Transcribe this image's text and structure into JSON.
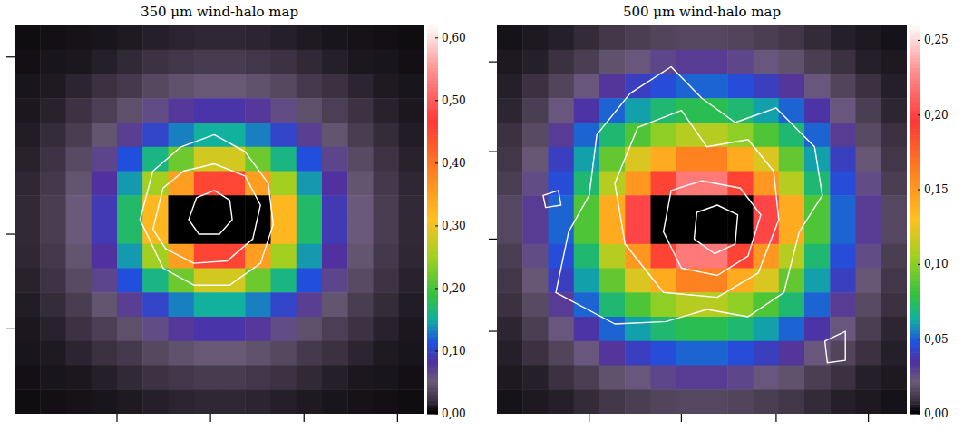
{
  "chart_data": [
    {
      "type": "heatmap",
      "title": "350 μm wind-halo map",
      "tick_labels": false,
      "xlim": [
        0,
        16
      ],
      "ylim": [
        0,
        16
      ],
      "xticks": [
        4,
        7.65,
        11.3,
        14.95
      ],
      "yticks": [
        3.5,
        7.4,
        14.7
      ],
      "colorbar_range": [
        0,
        0.62
      ],
      "colorbar_ticks": [
        {
          "value": 0,
          "label": "0,00"
        },
        {
          "value": 0.1,
          "label": "0,10"
        },
        {
          "value": 0.2,
          "label": "0,20"
        },
        {
          "value": 0.3,
          "label": "0,30"
        },
        {
          "value": 0.4,
          "label": "0,40"
        },
        {
          "value": 0.5,
          "label": "0,50"
        },
        {
          "value": 0.6,
          "label": "0,60"
        }
      ],
      "cells": [
        [
          0.005,
          0.006,
          0.007,
          0.008,
          0.01,
          0.012,
          0.014,
          0.015,
          0.015,
          0.014,
          0.012,
          0.01,
          0.008,
          0.007,
          0.006,
          0.005
        ],
        [
          0.006,
          0.008,
          0.009,
          0.012,
          0.016,
          0.02,
          0.024,
          0.027,
          0.027,
          0.024,
          0.02,
          0.016,
          0.012,
          0.009,
          0.008,
          0.006
        ],
        [
          0.008,
          0.01,
          0.014,
          0.019,
          0.026,
          0.036,
          0.043,
          0.048,
          0.048,
          0.043,
          0.036,
          0.026,
          0.019,
          0.014,
          0.01,
          0.008
        ],
        [
          0.009,
          0.013,
          0.02,
          0.03,
          0.042,
          0.06,
          0.075,
          0.085,
          0.085,
          0.075,
          0.06,
          0.042,
          0.03,
          0.02,
          0.013,
          0.009
        ],
        [
          0.011,
          0.017,
          0.028,
          0.045,
          0.07,
          0.1,
          0.13,
          0.15,
          0.15,
          0.13,
          0.1,
          0.07,
          0.045,
          0.028,
          0.017,
          0.011
        ],
        [
          0.013,
          0.021,
          0.038,
          0.065,
          0.11,
          0.16,
          0.22,
          0.28,
          0.28,
          0.22,
          0.16,
          0.11,
          0.065,
          0.038,
          0.021,
          0.013
        ],
        [
          0.015,
          0.025,
          0.045,
          0.08,
          0.14,
          0.25,
          0.35,
          0.45,
          0.45,
          0.35,
          0.25,
          0.14,
          0.08,
          0.045,
          0.025,
          0.015
        ],
        [
          0.016,
          0.028,
          0.05,
          0.09,
          0.17,
          0.32,
          null,
          null,
          null,
          null,
          0.32,
          0.17,
          0.09,
          0.05,
          0.028,
          0.016
        ],
        [
          0.016,
          0.028,
          0.05,
          0.09,
          0.17,
          0.32,
          null,
          null,
          null,
          null,
          0.32,
          0.17,
          0.09,
          0.05,
          0.028,
          0.016
        ],
        [
          0.015,
          0.025,
          0.045,
          0.08,
          0.14,
          0.25,
          0.35,
          0.45,
          0.45,
          0.35,
          0.25,
          0.14,
          0.08,
          0.045,
          0.025,
          0.015
        ],
        [
          0.013,
          0.021,
          0.038,
          0.065,
          0.11,
          0.16,
          0.22,
          0.28,
          0.28,
          0.22,
          0.16,
          0.11,
          0.065,
          0.038,
          0.021,
          0.013
        ],
        [
          0.011,
          0.017,
          0.028,
          0.045,
          0.07,
          0.1,
          0.13,
          0.15,
          0.15,
          0.13,
          0.1,
          0.07,
          0.045,
          0.028,
          0.017,
          0.011
        ],
        [
          0.009,
          0.013,
          0.02,
          0.03,
          0.042,
          0.06,
          0.075,
          0.085,
          0.085,
          0.075,
          0.06,
          0.042,
          0.03,
          0.02,
          0.013,
          0.009
        ],
        [
          0.008,
          0.01,
          0.014,
          0.019,
          0.026,
          0.036,
          0.043,
          0.048,
          0.048,
          0.043,
          0.036,
          0.026,
          0.019,
          0.014,
          0.01,
          0.008
        ],
        [
          0.006,
          0.008,
          0.009,
          0.012,
          0.016,
          0.02,
          0.024,
          0.027,
          0.027,
          0.024,
          0.02,
          0.016,
          0.012,
          0.009,
          0.008,
          0.006
        ],
        [
          0.005,
          0.006,
          0.007,
          0.008,
          0.01,
          0.012,
          0.014,
          0.015,
          0.015,
          0.014,
          0.012,
          0.01,
          0.008,
          0.007,
          0.006,
          0.005
        ]
      ],
      "contours": [
        [
          [
            6.8,
            8.0
          ],
          [
            7.1,
            8.9
          ],
          [
            7.8,
            9.2
          ],
          [
            8.4,
            8.8
          ],
          [
            8.5,
            8.0
          ],
          [
            8.0,
            7.4
          ],
          [
            7.2,
            7.4
          ]
        ],
        [
          [
            5.4,
            7.6
          ],
          [
            5.8,
            9.3
          ],
          [
            6.6,
            10.0
          ],
          [
            7.8,
            10.3
          ],
          [
            9.0,
            9.8
          ],
          [
            9.6,
            8.6
          ],
          [
            9.3,
            7.2
          ],
          [
            8.3,
            6.3
          ],
          [
            7.0,
            6.2
          ],
          [
            5.9,
            6.8
          ]
        ],
        [
          [
            4.9,
            8.0
          ],
          [
            5.4,
            10.0
          ],
          [
            6.5,
            11.0
          ],
          [
            7.8,
            11.5
          ],
          [
            9.0,
            10.8
          ],
          [
            9.9,
            9.5
          ],
          [
            10.1,
            7.8
          ],
          [
            9.6,
            6.2
          ],
          [
            8.4,
            5.3
          ],
          [
            7.0,
            5.3
          ],
          [
            5.8,
            6.0
          ]
        ]
      ]
    },
    {
      "type": "heatmap",
      "title": "500 μm wind-halo map",
      "tick_labels": false,
      "xlim": [
        0,
        16
      ],
      "ylim": [
        0,
        16
      ],
      "xticks": [
        3.6,
        7.2,
        10.9,
        14.5
      ],
      "yticks": [
        3.4,
        7.2,
        10.8,
        14.5
      ],
      "colorbar_range": [
        0,
        0.26
      ],
      "colorbar_ticks": [
        {
          "value": 0,
          "label": "0,00"
        },
        {
          "value": 0.05,
          "label": "0,05"
        },
        {
          "value": 0.1,
          "label": "0,10"
        },
        {
          "value": 0.15,
          "label": "0,15"
        },
        {
          "value": 0.2,
          "label": "0,20"
        },
        {
          "value": 0.25,
          "label": "0,25"
        }
      ],
      "cells": [
        [
          0.003,
          0.004,
          0.005,
          0.007,
          0.01,
          0.012,
          0.014,
          0.015,
          0.015,
          0.014,
          0.012,
          0.01,
          0.007,
          0.005,
          0.004,
          0.003
        ],
        [
          0.004,
          0.005,
          0.008,
          0.012,
          0.018,
          0.022,
          0.027,
          0.03,
          0.03,
          0.027,
          0.022,
          0.018,
          0.012,
          0.008,
          0.005,
          0.004
        ],
        [
          0.005,
          0.008,
          0.014,
          0.022,
          0.032,
          0.04,
          0.045,
          0.05,
          0.05,
          0.045,
          0.04,
          0.032,
          0.022,
          0.014,
          0.008,
          0.005
        ],
        [
          0.006,
          0.012,
          0.022,
          0.035,
          0.05,
          0.06,
          0.07,
          0.075,
          0.075,
          0.07,
          0.06,
          0.05,
          0.035,
          0.022,
          0.012,
          0.006
        ],
        [
          0.008,
          0.016,
          0.03,
          0.05,
          0.07,
          0.085,
          0.1,
          0.11,
          0.11,
          0.1,
          0.085,
          0.07,
          0.05,
          0.03,
          0.016,
          0.008
        ],
        [
          0.01,
          0.02,
          0.04,
          0.06,
          0.09,
          0.12,
          0.14,
          0.16,
          0.16,
          0.14,
          0.12,
          0.09,
          0.06,
          0.04,
          0.02,
          0.01
        ],
        [
          0.012,
          0.025,
          0.045,
          0.07,
          0.11,
          0.15,
          0.19,
          0.22,
          0.22,
          0.19,
          0.15,
          0.11,
          0.07,
          0.045,
          0.025,
          0.012
        ],
        [
          0.015,
          0.03,
          0.05,
          0.085,
          0.14,
          0.2,
          null,
          null,
          null,
          null,
          0.2,
          0.14,
          0.085,
          0.05,
          0.03,
          0.015
        ],
        [
          0.015,
          0.03,
          0.05,
          0.085,
          0.14,
          0.2,
          null,
          null,
          null,
          null,
          0.2,
          0.14,
          0.085,
          0.05,
          0.03,
          0.015
        ],
        [
          0.012,
          0.025,
          0.045,
          0.07,
          0.11,
          0.15,
          0.19,
          0.22,
          0.22,
          0.19,
          0.15,
          0.11,
          0.07,
          0.045,
          0.025,
          0.012
        ],
        [
          0.01,
          0.02,
          0.04,
          0.06,
          0.09,
          0.12,
          0.14,
          0.16,
          0.16,
          0.14,
          0.12,
          0.09,
          0.06,
          0.04,
          0.02,
          0.01
        ],
        [
          0.008,
          0.016,
          0.03,
          0.05,
          0.07,
          0.085,
          0.1,
          0.11,
          0.11,
          0.1,
          0.085,
          0.07,
          0.05,
          0.03,
          0.016,
          0.008
        ],
        [
          0.006,
          0.012,
          0.022,
          0.035,
          0.05,
          0.06,
          0.07,
          0.075,
          0.075,
          0.07,
          0.06,
          0.05,
          0.035,
          0.022,
          0.012,
          0.006
        ],
        [
          0.005,
          0.008,
          0.014,
          0.022,
          0.032,
          0.04,
          0.045,
          0.05,
          0.05,
          0.045,
          0.04,
          0.032,
          0.022,
          0.014,
          0.008,
          0.005
        ],
        [
          0.004,
          0.005,
          0.008,
          0.012,
          0.018,
          0.022,
          0.027,
          0.03,
          0.03,
          0.027,
          0.022,
          0.018,
          0.012,
          0.008,
          0.005,
          0.004
        ],
        [
          0.003,
          0.004,
          0.005,
          0.007,
          0.01,
          0.012,
          0.014,
          0.015,
          0.015,
          0.014,
          0.012,
          0.01,
          0.007,
          0.005,
          0.004,
          0.003
        ]
      ],
      "contours": [
        [
          [
            7.7,
            7.2
          ],
          [
            7.8,
            8.3
          ],
          [
            8.6,
            8.6
          ],
          [
            9.4,
            8.2
          ],
          [
            9.3,
            7.0
          ],
          [
            8.5,
            6.6
          ]
        ],
        [
          [
            6.5,
            7.5
          ],
          [
            6.8,
            9.2
          ],
          [
            8.0,
            9.6
          ],
          [
            9.5,
            9.3
          ],
          [
            10.3,
            8.2
          ],
          [
            9.8,
            6.5
          ],
          [
            8.6,
            5.7
          ],
          [
            7.2,
            6.0
          ]
        ],
        [
          [
            5.0,
            7.0
          ],
          [
            4.6,
            9.5
          ],
          [
            5.5,
            11.8
          ],
          [
            7.2,
            12.5
          ],
          [
            8.2,
            11.0
          ],
          [
            9.8,
            11.3
          ],
          [
            10.8,
            10.0
          ],
          [
            11.0,
            8.0
          ],
          [
            10.2,
            5.8
          ],
          [
            8.6,
            4.8
          ],
          [
            6.5,
            5.0
          ]
        ],
        [
          [
            2.3,
            5.0
          ],
          [
            2.8,
            7.5
          ],
          [
            3.6,
            9.0
          ],
          [
            3.9,
            11.5
          ],
          [
            5.2,
            13.2
          ],
          [
            6.8,
            14.3
          ],
          [
            8.0,
            13.0
          ],
          [
            9.3,
            12.0
          ],
          [
            10.9,
            12.6
          ],
          [
            12.4,
            11.0
          ],
          [
            12.7,
            9.0
          ],
          [
            11.8,
            7.5
          ],
          [
            11.2,
            5.0
          ],
          [
            9.8,
            4.0
          ],
          [
            8.2,
            4.3
          ],
          [
            6.6,
            3.8
          ],
          [
            4.6,
            3.7
          ]
        ],
        [
          [
            1.8,
            9.0
          ],
          [
            2.4,
            9.2
          ],
          [
            2.5,
            8.6
          ],
          [
            1.9,
            8.5
          ]
        ],
        [
          [
            12.8,
            3.0
          ],
          [
            13.6,
            3.4
          ],
          [
            13.6,
            2.2
          ],
          [
            12.9,
            2.1
          ]
        ]
      ]
    }
  ]
}
